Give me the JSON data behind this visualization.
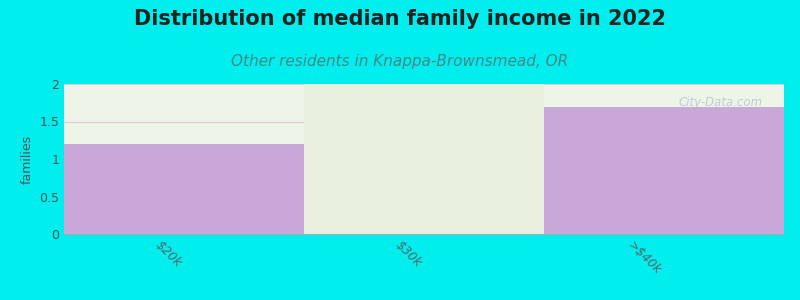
{
  "title": "Distribution of median family income in 2022",
  "subtitle": "Other residents in Knappa-Brownsmead, OR",
  "categories": [
    "$20k",
    "$30k",
    ">$40k"
  ],
  "values": [
    1.2,
    0.0,
    1.7
  ],
  "bar_color": "#c8a8d8",
  "bar_color_empty": "#e8f0e0",
  "background_color": "#00eeee",
  "plot_bg_color": "#edf5e8",
  "ylabel": "families",
  "ylim": [
    0,
    2.0
  ],
  "yticks": [
    0,
    0.5,
    1.0,
    1.5,
    2
  ],
  "title_fontsize": 15,
  "subtitle_fontsize": 11,
  "subtitle_color": "#448888",
  "grid_color": "#e0c8d8",
  "watermark": "City-Data.com"
}
